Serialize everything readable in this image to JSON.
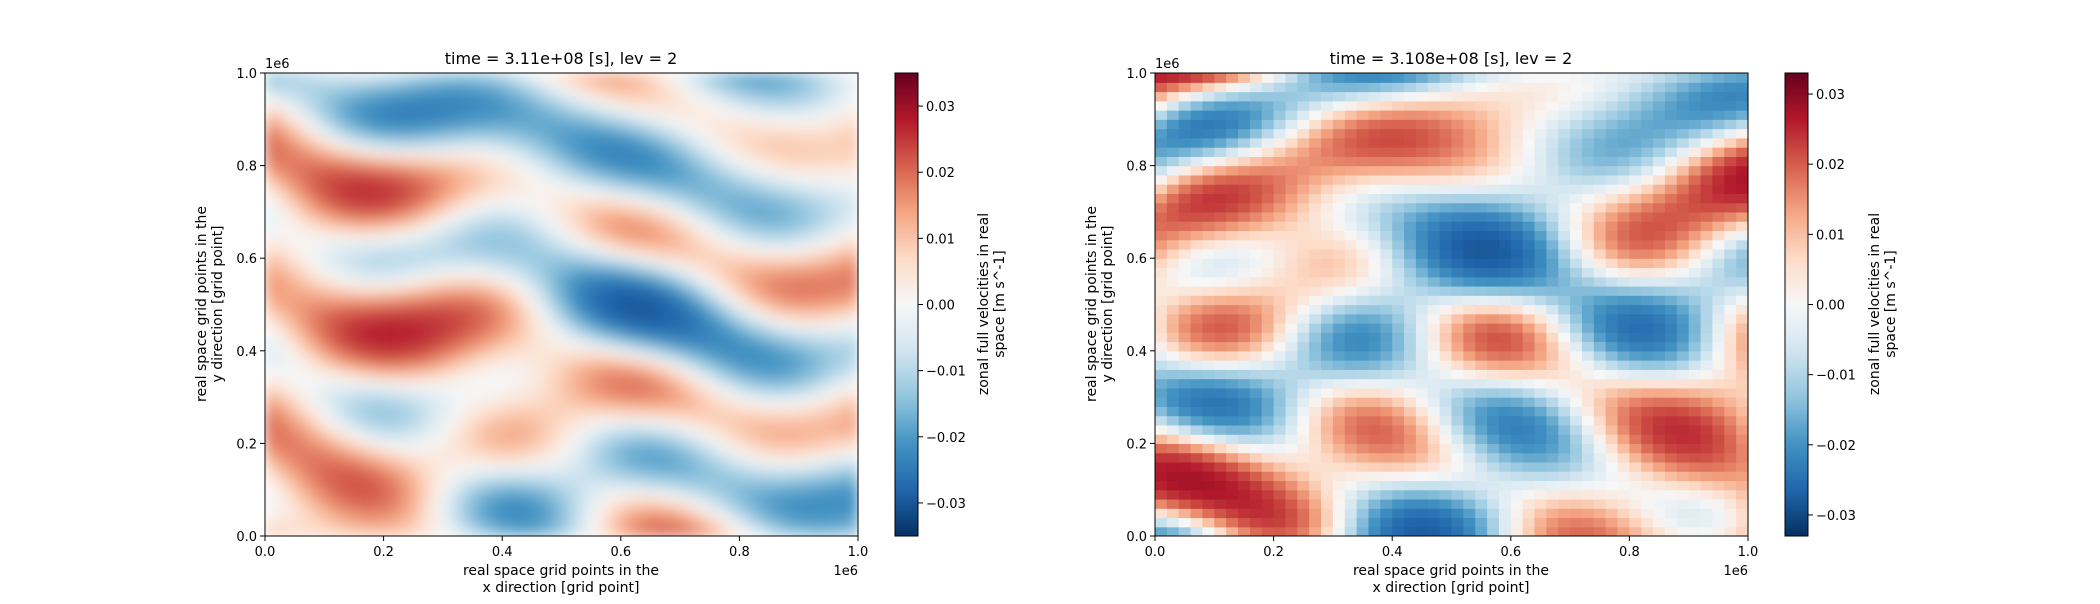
{
  "chart_data": [
    {
      "type": "heatmap",
      "title": "time = 3.11e+08 [s], lev = 2",
      "xlabel_lines": [
        "real space grid points in the",
        "x direction [grid point]"
      ],
      "ylabel_lines": [
        "real space grid points in the",
        "y direction [grid point]"
      ],
      "xlim": [
        0,
        1000000
      ],
      "ylim": [
        0,
        1000000
      ],
      "xticks": [
        0.0,
        0.2,
        0.4,
        0.6,
        0.8,
        1.0
      ],
      "xtick_labels": [
        "0.0",
        "0.2",
        "0.4",
        "0.6",
        "0.8",
        "1.0"
      ],
      "yticks": [
        0.0,
        0.2,
        0.4,
        0.6,
        0.8,
        1.0
      ],
      "ytick_labels": [
        "0.0",
        "0.2",
        "0.4",
        "0.6",
        "0.8",
        "1.0"
      ],
      "x_offset_label": "1e6",
      "y_offset_label": "1e6",
      "colorbar": {
        "label_lines": [
          "zonal full velocities in real",
          "space [m s^-1]"
        ],
        "range": [
          -0.035,
          0.035
        ],
        "ticks": [
          -0.03,
          -0.02,
          -0.01,
          0.0,
          0.01,
          0.02,
          0.03
        ],
        "tick_labels": [
          "−0.03",
          "−0.02",
          "−0.01",
          "0.00",
          "0.01",
          "0.02",
          "0.03"
        ],
        "colormap": "RdBu_r"
      },
      "shading": "smooth"
    },
    {
      "type": "heatmap",
      "title": "time = 3.108e+08 [s], lev = 2",
      "xlabel_lines": [
        "real space grid points in the",
        "x direction [grid point]"
      ],
      "ylabel_lines": [
        "real space grid points in the",
        "y direction [grid point]"
      ],
      "xlim": [
        0,
        1000000
      ],
      "ylim": [
        0,
        1000000
      ],
      "xticks": [
        0.0,
        0.2,
        0.4,
        0.6,
        0.8,
        1.0
      ],
      "xtick_labels": [
        "0.0",
        "0.2",
        "0.4",
        "0.6",
        "0.8",
        "1.0"
      ],
      "yticks": [
        0.0,
        0.2,
        0.4,
        0.6,
        0.8,
        1.0
      ],
      "ytick_labels": [
        "0.0",
        "0.2",
        "0.4",
        "0.6",
        "0.8",
        "1.0"
      ],
      "x_offset_label": "1e6",
      "y_offset_label": "1e6",
      "colorbar": {
        "label_lines": [
          "zonal full velocities in real",
          "space [m s^-1]"
        ],
        "range": [
          -0.033,
          0.033
        ],
        "ticks": [
          -0.03,
          -0.02,
          -0.01,
          0.0,
          0.01,
          0.02,
          0.03
        ],
        "tick_labels": [
          "−0.03",
          "−0.02",
          "−0.01",
          "0.00",
          "0.01",
          "0.02",
          "0.03"
        ],
        "colormap": "RdBu_r"
      },
      "shading": "blocky"
    }
  ],
  "colors": {
    "cmap_stops": [
      "#053061",
      "#2166ac",
      "#4393c3",
      "#92c5de",
      "#d1e5f0",
      "#f7f7f7",
      "#fddbc7",
      "#f4a582",
      "#d6604d",
      "#b2182b",
      "#67001f"
    ]
  }
}
